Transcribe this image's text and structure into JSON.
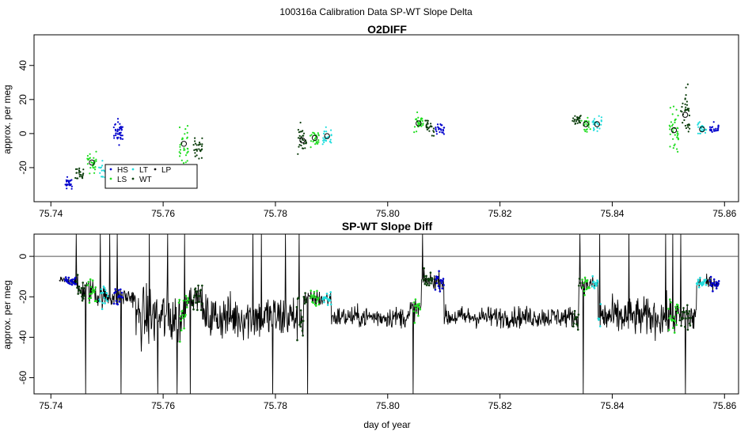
{
  "figure": {
    "title": "100316a   Calibration Data SP-WT Slope Delta"
  },
  "colors": {
    "HS": "#0000cc",
    "LS": "#22dd22",
    "LT": "#22dddd",
    "WT": "#0b3d0b",
    "LP": "#111111",
    "trace": "#000000"
  },
  "chart_data": [
    {
      "type": "scatter",
      "title": "O2DIFF",
      "xlabel": "",
      "ylabel": "approx. per meg",
      "xlim": [
        75.737,
        75.8625
      ],
      "ylim": [
        -40,
        58
      ],
      "xticks": [
        75.74,
        75.76,
        75.78,
        75.8,
        75.82,
        75.84,
        75.86
      ],
      "xtick_labels": [
        "75.74",
        "75.76",
        "75.78",
        "75.80",
        "75.82",
        "75.84",
        "75.86"
      ],
      "yticks": [
        -20,
        0,
        20,
        40
      ],
      "ytick_labels": [
        "-20",
        "0",
        "20",
        "40"
      ],
      "legend": {
        "placement": "bottom-left",
        "entries": [
          "HS",
          "LS",
          "LT",
          "WT",
          "LP"
        ]
      },
      "clusters": [
        {
          "series": "HS",
          "x": 75.7432,
          "y": -29.5,
          "spread": 2.5,
          "n": 24
        },
        {
          "series": "WT",
          "x": 75.745,
          "y": -23.5,
          "spread": 2.5,
          "n": 22
        },
        {
          "series": "LS",
          "x": 75.7473,
          "y": -17.0,
          "spread": 4,
          "n": 28
        },
        {
          "series": "LT",
          "x": 75.7493,
          "y": -22.0,
          "spread": 4,
          "n": 18
        },
        {
          "series": "HS",
          "x": 75.752,
          "y": 0.5,
          "spread": 5,
          "n": 40
        },
        {
          "series": "LS",
          "x": 75.7637,
          "y": -6.0,
          "spread": 9,
          "n": 32
        },
        {
          "series": "WT",
          "x": 75.7662,
          "y": -8.5,
          "spread": 4,
          "n": 26
        },
        {
          "series": "WT",
          "x": 75.7848,
          "y": -4.0,
          "spread": 7,
          "n": 30
        },
        {
          "series": "LS",
          "x": 75.787,
          "y": -2.5,
          "spread": 3.5,
          "n": 26
        },
        {
          "series": "LT",
          "x": 75.7892,
          "y": -1.5,
          "spread": 4.5,
          "n": 26
        },
        {
          "series": "LS",
          "x": 75.8055,
          "y": 6.0,
          "spread": 3.5,
          "n": 30
        },
        {
          "series": "WT",
          "x": 75.8075,
          "y": 4.0,
          "spread": 3,
          "n": 26
        },
        {
          "series": "HS",
          "x": 75.8093,
          "y": 3.0,
          "spread": 3,
          "n": 24
        },
        {
          "series": "WT",
          "x": 75.8337,
          "y": 8.0,
          "spread": 2,
          "n": 24
        },
        {
          "series": "LS",
          "x": 75.8353,
          "y": 5.5,
          "spread": 3,
          "n": 24
        },
        {
          "series": "LT",
          "x": 75.8373,
          "y": 5.5,
          "spread": 3.5,
          "n": 24
        },
        {
          "series": "LS",
          "x": 75.851,
          "y": 2.0,
          "spread": 9,
          "n": 40
        },
        {
          "series": "WT",
          "x": 75.853,
          "y": 11.0,
          "spread": 11,
          "n": 34
        },
        {
          "series": "LT",
          "x": 75.856,
          "y": 2.5,
          "spread": 2.5,
          "n": 26
        },
        {
          "series": "HS",
          "x": 75.8582,
          "y": 2.5,
          "spread": 2.5,
          "n": 24
        }
      ],
      "means": [
        {
          "x": 75.7473,
          "y": -17.0
        },
        {
          "x": 75.7637,
          "y": -6.0
        },
        {
          "x": 75.7848,
          "y": -4.0
        },
        {
          "x": 75.787,
          "y": -2.5
        },
        {
          "x": 75.7892,
          "y": -1.5
        },
        {
          "x": 75.8055,
          "y": 6.0
        },
        {
          "x": 75.8353,
          "y": 5.5
        },
        {
          "x": 75.8373,
          "y": 5.5
        },
        {
          "x": 75.851,
          "y": 2.0
        },
        {
          "x": 75.853,
          "y": 11.0
        },
        {
          "x": 75.856,
          "y": 2.5
        }
      ]
    },
    {
      "type": "line",
      "title": "SP-WT Slope Diff",
      "xlabel": "day of year",
      "ylabel": "approx. per meg",
      "xlim": [
        75.737,
        75.8625
      ],
      "ylim": [
        -68,
        11
      ],
      "xticks": [
        75.74,
        75.76,
        75.78,
        75.8,
        75.82,
        75.84,
        75.86
      ],
      "xtick_labels": [
        "75.74",
        "75.76",
        "75.78",
        "75.80",
        "75.82",
        "75.84",
        "75.86"
      ],
      "yticks": [
        -60,
        -40,
        -20,
        0
      ],
      "ytick_labels": [
        "-60",
        "-40",
        "-20",
        "0"
      ],
      "hline": 0,
      "x_range": [
        75.7415,
        75.859
      ],
      "segments": [
        {
          "x0": 75.7415,
          "x1": 75.7445,
          "level": -12,
          "noise": 2
        },
        {
          "x0": 75.7445,
          "x1": 75.748,
          "level": -17,
          "noise": 6
        },
        {
          "x0": 75.748,
          "x1": 75.755,
          "level": -20,
          "noise": 5
        },
        {
          "x0": 75.755,
          "x1": 75.764,
          "level": -30,
          "noise": 14
        },
        {
          "x0": 75.764,
          "x1": 75.767,
          "level": -20,
          "noise": 5
        },
        {
          "x0": 75.767,
          "x1": 75.785,
          "level": -30,
          "noise": 11
        },
        {
          "x0": 75.785,
          "x1": 75.79,
          "level": -21,
          "noise": 4
        },
        {
          "x0": 75.79,
          "x1": 75.804,
          "level": -30,
          "noise": 5
        },
        {
          "x0": 75.804,
          "x1": 75.806,
          "level": -26,
          "noise": 5
        },
        {
          "x0": 75.806,
          "x1": 75.81,
          "level": -12,
          "noise": 4
        },
        {
          "x0": 75.81,
          "x1": 75.834,
          "level": -30,
          "noise": 5
        },
        {
          "x0": 75.834,
          "x1": 75.8375,
          "level": -14,
          "noise": 4
        },
        {
          "x0": 75.8375,
          "x1": 75.855,
          "level": -30,
          "noise": 9
        },
        {
          "x0": 75.855,
          "x1": 75.859,
          "level": -13,
          "noise": 3
        }
      ],
      "spikes": [
        {
          "x": 75.7445,
          "y": 11
        },
        {
          "x": 75.7462,
          "y": -68
        },
        {
          "x": 75.7488,
          "y": 11
        },
        {
          "x": 75.7505,
          "y": 11
        },
        {
          "x": 75.7518,
          "y": 11
        },
        {
          "x": 75.7525,
          "y": -68
        },
        {
          "x": 75.7575,
          "y": 11
        },
        {
          "x": 75.759,
          "y": -68
        },
        {
          "x": 75.7608,
          "y": 11
        },
        {
          "x": 75.7625,
          "y": -68
        },
        {
          "x": 75.7638,
          "y": 11
        },
        {
          "x": 75.7648,
          "y": -68
        },
        {
          "x": 75.776,
          "y": 11
        },
        {
          "x": 75.7775,
          "y": 11
        },
        {
          "x": 75.7795,
          "y": -68
        },
        {
          "x": 75.7818,
          "y": 11
        },
        {
          "x": 75.7842,
          "y": 11
        },
        {
          "x": 75.7857,
          "y": -68
        },
        {
          "x": 75.8045,
          "y": -68
        },
        {
          "x": 75.8062,
          "y": 11
        },
        {
          "x": 75.8342,
          "y": 11
        },
        {
          "x": 75.8348,
          "y": -68
        },
        {
          "x": 75.8378,
          "y": 11
        },
        {
          "x": 75.843,
          "y": 11
        },
        {
          "x": 75.8495,
          "y": 11
        },
        {
          "x": 75.8508,
          "y": 11
        },
        {
          "x": 75.8522,
          "y": 11
        },
        {
          "x": 75.853,
          "y": -68
        }
      ],
      "colored_runs": [
        {
          "series": "HS",
          "x0": 75.7425,
          "x1": 75.7445
        },
        {
          "series": "WT",
          "x0": 75.7446,
          "x1": 75.7462
        },
        {
          "series": "LS",
          "x0": 75.7465,
          "x1": 75.7482
        },
        {
          "series": "LT",
          "x0": 75.7486,
          "x1": 75.7502
        },
        {
          "series": "HS",
          "x0": 75.7512,
          "x1": 75.7528
        },
        {
          "series": "LS",
          "x0": 75.7628,
          "x1": 75.7645
        },
        {
          "series": "WT",
          "x0": 75.7652,
          "x1": 75.767
        },
        {
          "series": "WT",
          "x0": 75.7838,
          "x1": 75.7855
        },
        {
          "series": "LS",
          "x0": 75.7862,
          "x1": 75.7878
        },
        {
          "series": "LT",
          "x0": 75.7884,
          "x1": 75.79
        },
        {
          "series": "LS",
          "x0": 75.8045,
          "x1": 75.8058
        },
        {
          "series": "WT",
          "x0": 75.8063,
          "x1": 75.808
        },
        {
          "series": "HS",
          "x0": 75.8084,
          "x1": 75.81
        },
        {
          "series": "WT",
          "x0": 75.833,
          "x1": 75.8344
        },
        {
          "series": "LS",
          "x0": 75.8346,
          "x1": 75.836
        },
        {
          "series": "LT",
          "x0": 75.8364,
          "x1": 75.838
        },
        {
          "series": "LS",
          "x0": 75.85,
          "x1": 75.8518
        },
        {
          "series": "WT",
          "x0": 75.852,
          "x1": 75.854
        },
        {
          "series": "LT",
          "x0": 75.855,
          "x1": 75.8568
        },
        {
          "series": "HS",
          "x0": 75.8574,
          "x1": 75.859
        }
      ]
    }
  ]
}
